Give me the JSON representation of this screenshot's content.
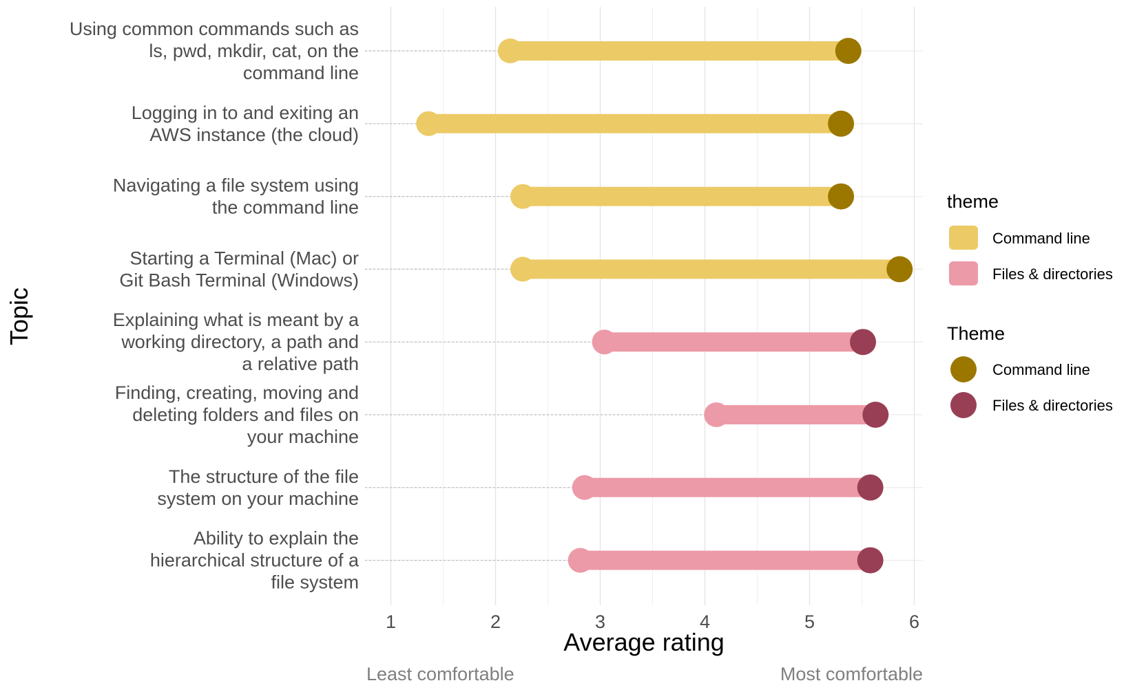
{
  "chart_data": {
    "type": "dumbbell",
    "xlabel": "Average rating",
    "ylabel": "Topic",
    "xlim": [
      1,
      6
    ],
    "x_ticks": [
      1,
      2,
      3,
      4,
      5,
      6
    ],
    "scale_low_label": "Least comfortable",
    "scale_high_label": "Most comfortable",
    "grid": true,
    "legend_position": "right",
    "legends": [
      {
        "title": "theme",
        "entries": [
          {
            "label": "Command line",
            "color": "#ecca66"
          },
          {
            "label": "Files & directories",
            "color": "#ec9aa8"
          }
        ]
      },
      {
        "title": "Theme",
        "entries": [
          {
            "label": "Command line",
            "color": "#9b7700"
          },
          {
            "label": "Files & directories",
            "color": "#993f55"
          }
        ]
      }
    ],
    "rows": [
      {
        "topic": [
          "Using common commands such as",
          "ls, pwd, mkdir, cat, on the",
          "command line"
        ],
        "theme": "Command line",
        "start": 2.14,
        "end": 5.37
      },
      {
        "topic": [
          "Logging in to and exiting an",
          "AWS instance (the cloud)"
        ],
        "theme": "Command line",
        "start": 1.36,
        "end": 5.3
      },
      {
        "topic": [
          "Navigating a file system using",
          "the command line"
        ],
        "theme": "Command line",
        "start": 2.26,
        "end": 5.3
      },
      {
        "topic": [
          "Starting a Terminal (Mac) or",
          "Git Bash Terminal (Windows)"
        ],
        "theme": "Command line",
        "start": 2.26,
        "end": 5.86
      },
      {
        "topic": [
          "Explaining what is meant by a",
          "working directory, a path and",
          "a relative path"
        ],
        "theme": "Files & directories",
        "start": 3.04,
        "end": 5.51
      },
      {
        "topic": [
          "Finding, creating, moving and",
          "deleting folders and files on",
          "your machine"
        ],
        "theme": "Files & directories",
        "start": 4.11,
        "end": 5.63
      },
      {
        "topic": [
          "The structure of the file",
          "system on your machine"
        ],
        "theme": "Files & directories",
        "start": 2.85,
        "end": 5.58
      },
      {
        "topic": [
          "Ability to explain the",
          "hierarchical structure of a",
          "file system"
        ],
        "theme": "Files & directories",
        "start": 2.81,
        "end": 5.58
      }
    ],
    "colors": {
      "Command line": {
        "bar": "#ecca66",
        "end": "#9b7700"
      },
      "Files & directories": {
        "bar": "#ec9aa8",
        "end": "#993f55"
      }
    }
  }
}
